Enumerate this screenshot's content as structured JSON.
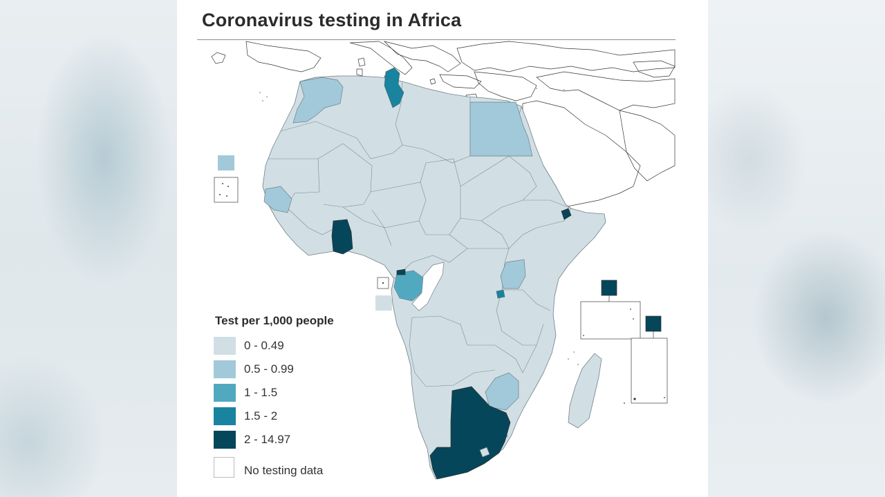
{
  "title": "Coronavirus testing in Africa",
  "legend": {
    "title": "Test per 1,000 people",
    "items": [
      {
        "label": "0 - 0.49",
        "color": "#d1dfe5"
      },
      {
        "label": "0.5 - 0.99",
        "color": "#a2c9da"
      },
      {
        "label": "1 - 1.5",
        "color": "#51a9c0"
      },
      {
        "label": "1.5 - 2",
        "color": "#18849f"
      },
      {
        "label": "2 - 14.97",
        "color": "#06465a"
      },
      {
        "label": "No testing data",
        "color": "#ffffff"
      }
    ]
  },
  "map_data": {
    "categories": {
      "0 - 0.49": [
        "Algeria",
        "Libya",
        "Western Sahara",
        "Mauritania",
        "Mali",
        "Niger",
        "Chad",
        "Sudan",
        "Ethiopia",
        "Somalia",
        "Nigeria",
        "DR Congo",
        "Angola",
        "Tanzania",
        "Kenya",
        "Mozambique",
        "Madagascar",
        "Namibia",
        "Zambia",
        "Cabo Verde",
        "Sao Tome and Principe"
      ],
      "0.5 - 0.99": [
        "Morocco",
        "Egypt",
        "Senegal",
        "Uganda",
        "Zimbabwe"
      ],
      "1 - 1.5": [
        "Gabon",
        "Eswatini"
      ],
      "1.5 - 2": [
        "Tunisia",
        "Rwanda"
      ],
      "2 - 14.97": [
        "Ghana",
        "Djibouti",
        "South Africa",
        "Botswana",
        "Equatorial Guinea",
        "Mauritius",
        "Seychelles"
      ],
      "No testing data": [
        "Congo"
      ]
    }
  }
}
